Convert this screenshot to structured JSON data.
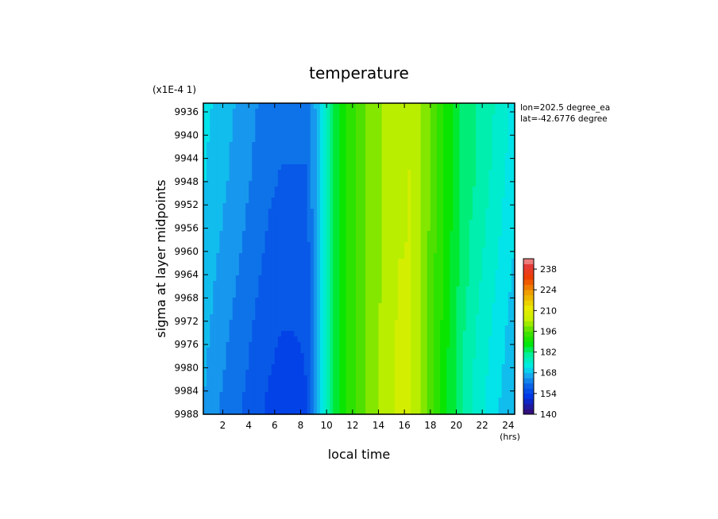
{
  "chart_data": {
    "type": "heatmap",
    "title": "temperature",
    "xlabel": "local time",
    "ylabel": "sigma at layer midpoints",
    "x_unit": "(hrs)",
    "y_scale_note": "(x1E-4 1)",
    "annotations": [
      "lon=202.5 degree_ea",
      "lat=-42.6776 degree"
    ],
    "xlim": [
      0.5,
      24.5
    ],
    "ylim": [
      9934.5,
      9988
    ],
    "y_inverted": true,
    "x_ticks": [
      "2",
      "4",
      "6",
      "8",
      "10",
      "12",
      "14",
      "16",
      "18",
      "20",
      "22",
      "24"
    ],
    "y_ticks": [
      "9936",
      "9940",
      "9944",
      "9948",
      "9952",
      "9956",
      "9960",
      "9964",
      "9968",
      "9972",
      "9976",
      "9980",
      "9984",
      "9988"
    ],
    "colorbar": {
      "range": [
        140,
        245
      ],
      "tick_labels": [
        "140",
        "154",
        "168",
        "182",
        "196",
        "210",
        "224",
        "238"
      ]
    },
    "x": [
      0.5,
      1.5,
      2.5,
      3.5,
      4.5,
      5.5,
      6.5,
      7.5,
      8.5,
      9.5,
      10.5,
      11.5,
      12.5,
      13.5,
      14.5,
      15.5,
      16.5,
      17.5,
      18.5,
      19.5,
      20.5,
      21.5,
      22.5,
      23.5,
      24.5
    ],
    "y": [
      9935,
      9948,
      9956,
      9964,
      9972,
      9980,
      9988
    ],
    "values": [
      [
        171,
        169,
        167,
        165,
        163,
        161,
        160,
        160,
        160,
        170,
        184,
        191,
        196,
        199,
        202,
        204,
        204,
        200,
        194,
        188,
        183,
        180,
        178,
        175,
        172
      ],
      [
        170,
        168,
        166,
        164,
        162,
        160,
        159,
        159,
        159,
        170,
        184,
        191,
        196,
        199,
        202,
        204,
        205,
        200,
        194,
        188,
        183,
        180,
        177,
        174,
        171
      ],
      [
        169,
        167,
        165,
        163,
        161,
        159,
        158,
        157,
        158,
        170,
        184,
        191,
        196,
        199,
        202,
        204,
        205,
        200,
        194,
        188,
        182,
        179,
        176,
        173,
        170
      ],
      [
        169,
        166,
        164,
        162,
        160,
        158,
        157,
        156,
        157,
        170,
        184,
        191,
        196,
        199,
        202,
        205,
        205,
        200,
        193,
        187,
        182,
        178,
        175,
        172,
        169
      ],
      [
        168,
        165,
        163,
        161,
        159,
        157,
        156,
        156,
        156,
        170,
        184,
        191,
        196,
        199,
        203,
        205,
        205,
        200,
        193,
        187,
        181,
        177,
        174,
        171,
        168
      ],
      [
        167,
        164,
        162,
        160,
        158,
        156,
        155,
        155,
        156,
        170,
        184,
        191,
        196,
        199,
        203,
        205,
        205,
        199,
        193,
        186,
        180,
        176,
        173,
        170,
        167
      ],
      [
        166,
        163,
        161,
        159,
        157,
        155,
        154,
        154,
        155,
        170,
        184,
        191,
        196,
        199,
        203,
        205,
        205,
        199,
        192,
        186,
        180,
        176,
        172,
        169,
        166
      ]
    ]
  }
}
